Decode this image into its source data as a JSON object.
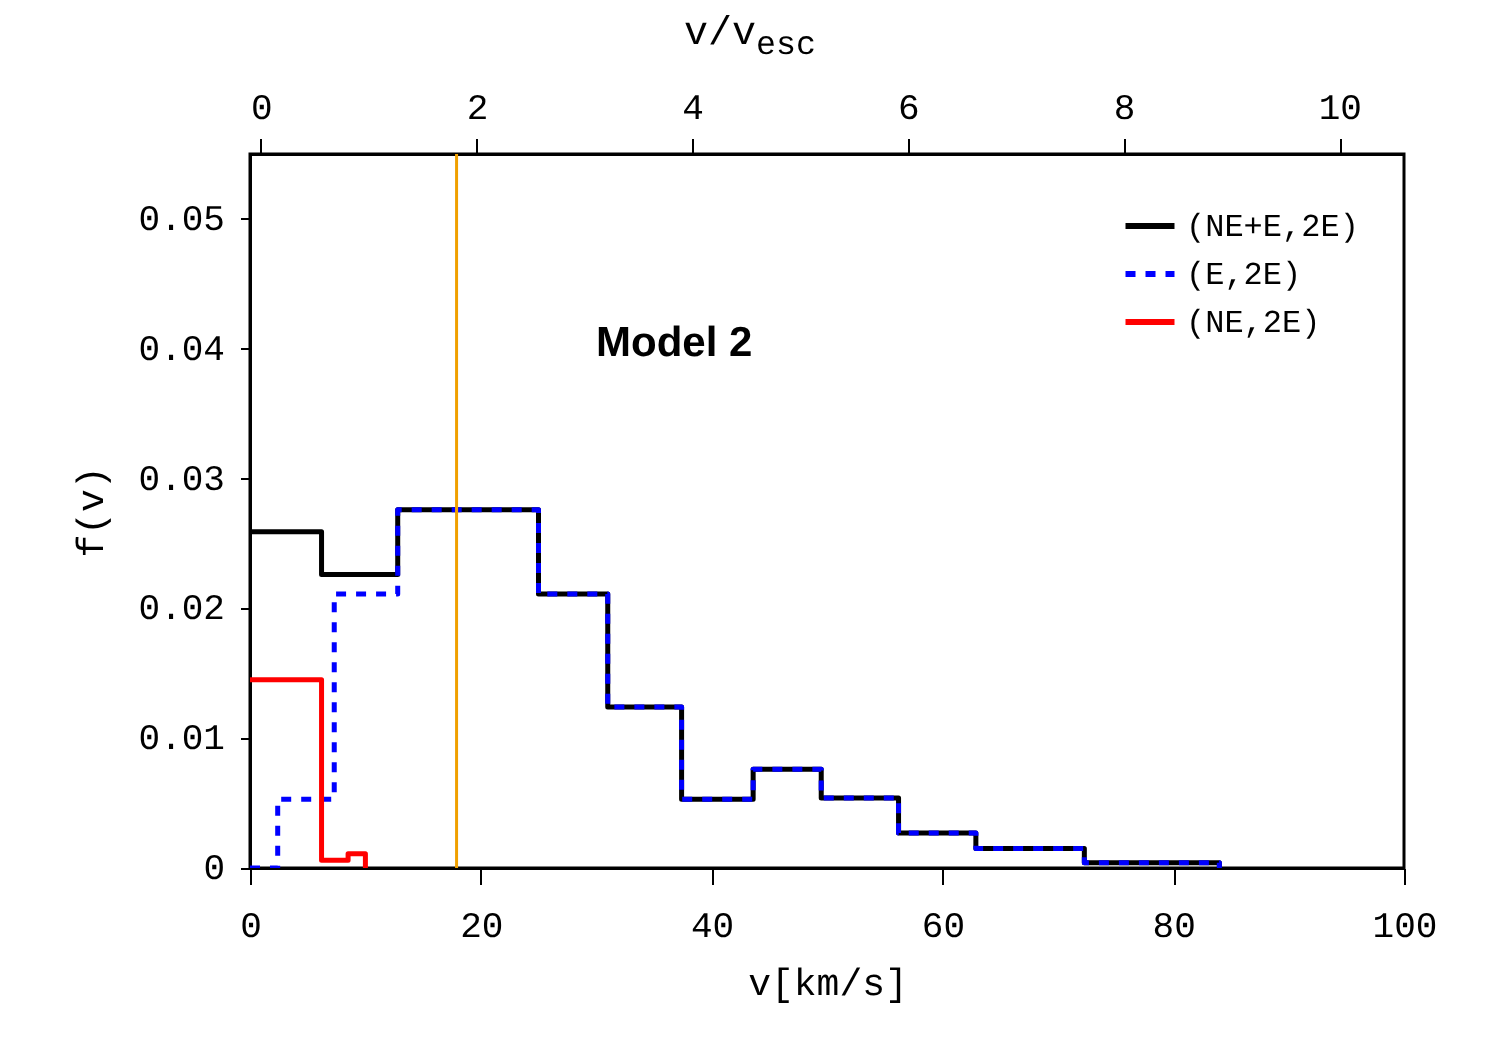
{
  "chart_data": {
    "type": "step",
    "xlabel": "v[km/s]",
    "ylabel": "f(v)",
    "x2label": "v/v$_{esc}$",
    "annotations": [
      "Model 2"
    ],
    "series": [
      {
        "name": "(NE+E,2E)",
        "color": "#000000",
        "line_style": "solid",
        "x": [
          0,
          6.2,
          12.8,
          25,
          31,
          37.4,
          43.6,
          49.5,
          56.2,
          62.9,
          72.3,
          84
        ],
        "values": [
          0.0259,
          0.0226,
          0.0276,
          0.0211,
          0.0124,
          0.0053,
          0.0076,
          0.0054,
          0.0027,
          0.0015,
          0.0004,
          0
        ]
      },
      {
        "name": "(E,2E)",
        "color": "#0000ff",
        "line_style": "dashed",
        "x": [
          0,
          2.4,
          7.3,
          12.8,
          25,
          31,
          37.4,
          43.6,
          49.5,
          56.2,
          62.9,
          72.3,
          84
        ],
        "values": [
          0,
          0.0053,
          0.0211,
          0.0276,
          0.0211,
          0.0124,
          0.0053,
          0.0076,
          0.0054,
          0.0027,
          0.0015,
          0.0004,
          0
        ]
      },
      {
        "name": "(NE,2E)",
        "color": "#ff0000",
        "line_style": "solid",
        "x": [
          0,
          6.2,
          8.5,
          10
        ],
        "values": [
          0.0145,
          0.0006,
          0.0011,
          0
        ]
      }
    ],
    "xlim": [
      0,
      100
    ],
    "xticks": [
      0,
      20,
      40,
      60,
      80,
      100
    ],
    "x2lim": [
      -0.1,
      10.6
    ],
    "x2ticks": [
      0,
      2,
      4,
      6,
      8,
      10
    ],
    "ylim": [
      0,
      0.055
    ],
    "yticks": [
      0,
      0.01,
      0.02,
      0.03,
      0.04,
      0.05
    ],
    "ref_lines": [
      {
        "axis": "x",
        "value": 17.9,
        "color": "#f0a000"
      }
    ],
    "grid": false,
    "legend": "top right"
  }
}
